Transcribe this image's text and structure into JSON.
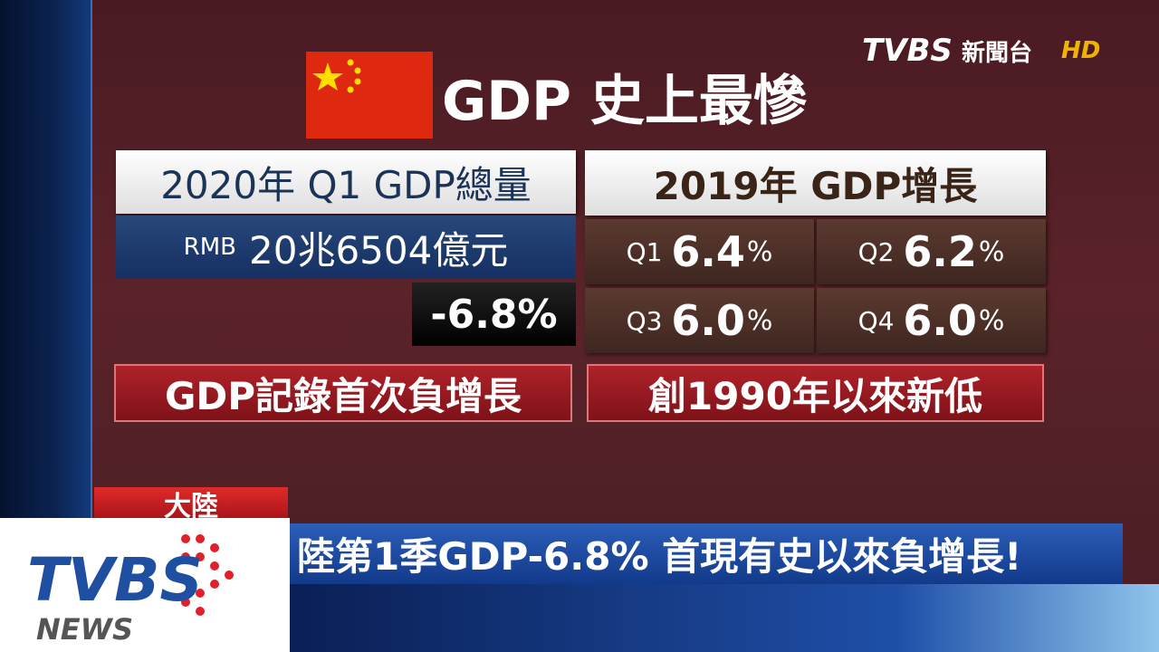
{
  "channel": {
    "logo": "TVBS",
    "name": "新聞台",
    "hd": "HD"
  },
  "title": "GDP 史上最慘",
  "left_panel": {
    "header": "2020年 Q1 GDP總量",
    "currency": "RMB",
    "amount": "20兆6504億元",
    "growth": "-6.8%",
    "note": "GDP記錄首次負增長"
  },
  "right_panel": {
    "header": "2019年 GDP增長",
    "quarters": [
      {
        "label": "Q1",
        "value": "6.4",
        "unit": "%"
      },
      {
        "label": "Q2",
        "value": "6.2",
        "unit": "%"
      },
      {
        "label": "Q3",
        "value": "6.0",
        "unit": "%"
      },
      {
        "label": "Q4",
        "value": "6.0",
        "unit": "%"
      }
    ],
    "note": "創1990年以來新低"
  },
  "ticker": {
    "tag": "大陸",
    "headline": "陸第1季GDP-6.8% 首現有史以來負增長!"
  },
  "brand": {
    "logo": "TVBS",
    "sub": "NEWS"
  }
}
